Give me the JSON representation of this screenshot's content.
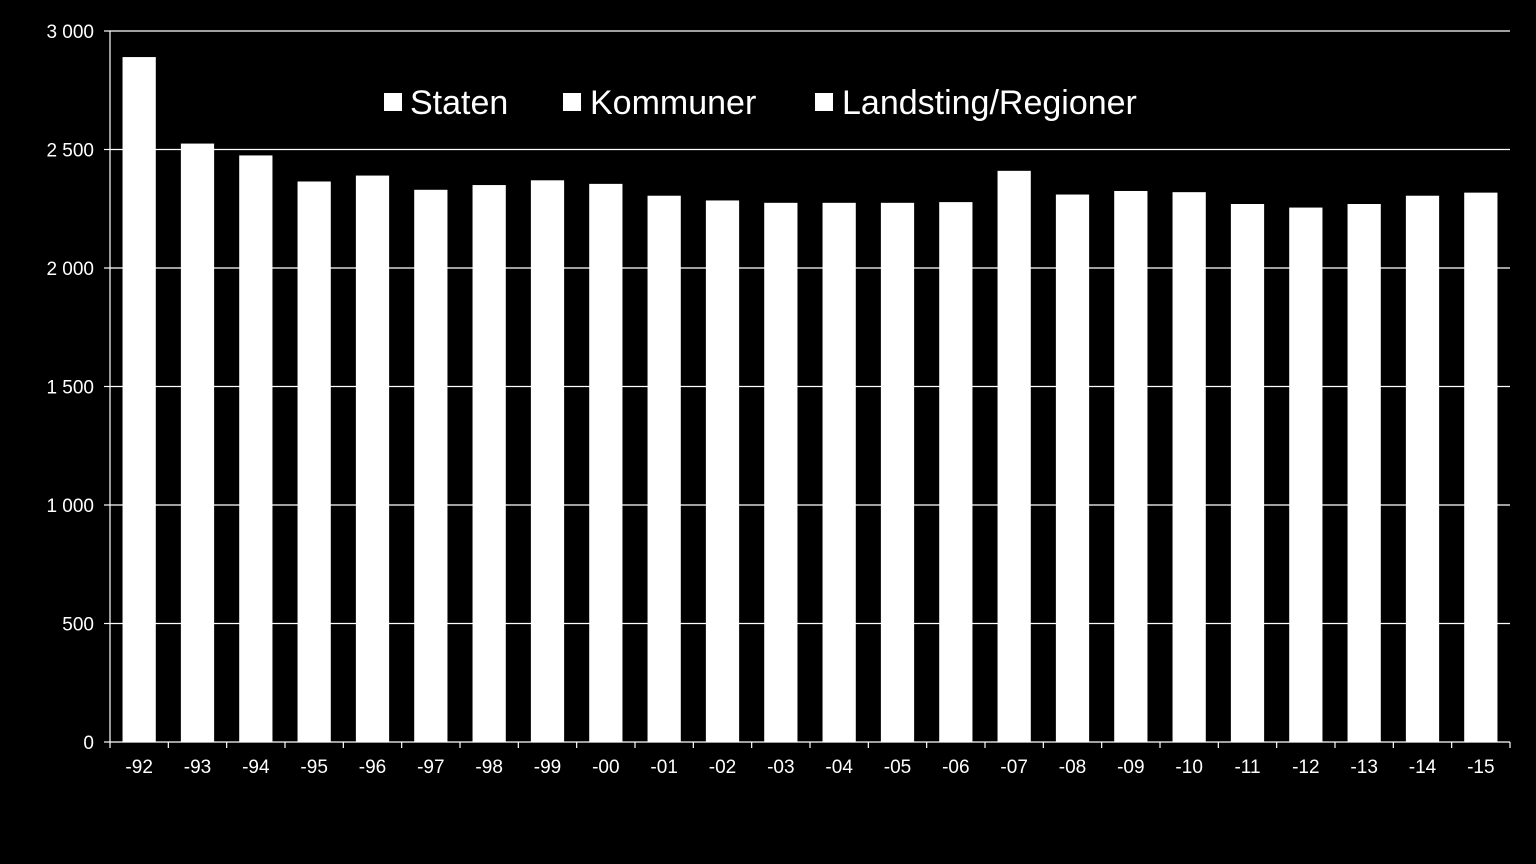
{
  "chart_data": {
    "type": "bar",
    "categories": [
      "-92",
      "-93",
      "-94",
      "-95",
      "-96",
      "-97",
      "-98",
      "-99",
      "-00",
      "-01",
      "-02",
      "-03",
      "-04",
      "-05",
      "-06",
      "-07",
      "-08",
      "-09",
      "-10",
      "-11",
      "-12",
      "-13",
      "-14",
      "-15"
    ],
    "series": [
      {
        "name": "Staten",
        "values": [
          2890,
          2525,
          2475,
          2365,
          2390,
          2330,
          2350,
          2370,
          2355,
          2305,
          2285,
          2275,
          2275,
          2275,
          2278,
          2410,
          2310,
          2325,
          2320,
          2270,
          2255,
          2270,
          2305,
          2318
        ]
      }
    ],
    "legend": [
      "Staten",
      "Kommuner",
      "Landsting/Regioner"
    ],
    "legend_position": "top-center",
    "y_ticks": [
      "0",
      "500",
      "1 000",
      "1 500",
      "2 000",
      "2 500",
      "3 000"
    ],
    "y_tick_values": [
      0,
      500,
      1000,
      1500,
      2000,
      2500,
      3000
    ],
    "ylim": [
      0,
      3000
    ],
    "grid": true,
    "title": "",
    "xlabel": "",
    "ylabel": ""
  },
  "colors": {
    "background": "#000000",
    "bar": "#ffffff",
    "grid": "#ffffff",
    "text": "#ffffff"
  }
}
